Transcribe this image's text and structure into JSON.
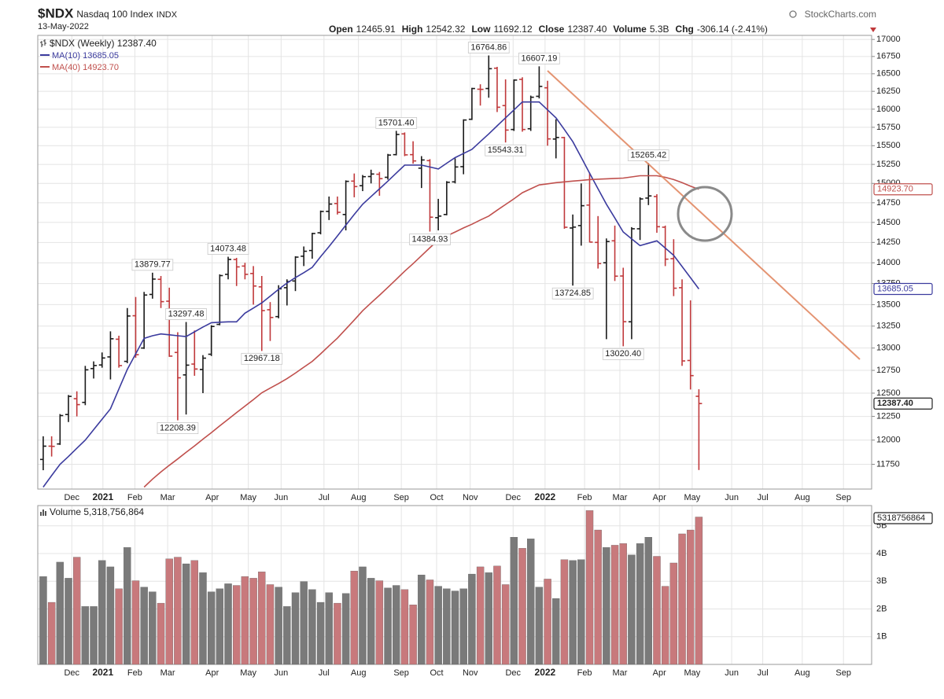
{
  "header": {
    "symbol": "$NDX",
    "name": "Nasdaq 100 Index",
    "exchange": "INDX",
    "date": "13-May-2022",
    "source": "StockCharts.com",
    "quote": [
      {
        "label": "Open",
        "value": "12465.91"
      },
      {
        "label": "High",
        "value": "12542.32"
      },
      {
        "label": "Low",
        "value": "11692.12"
      },
      {
        "label": "Close",
        "value": "12387.40"
      },
      {
        "label": "Volume",
        "value": "5.3B"
      },
      {
        "label": "Chg",
        "value": "-306.14 (-2.41%)"
      }
    ]
  },
  "chart_data": [
    {
      "type": "ohlc",
      "name": "$NDX (Weekly) 12387.40",
      "last_label": "12387.40",
      "up_color": "#1a1a1a",
      "down_color": "#c0393b",
      "log_scale": true,
      "grid": true,
      "ylim": [
        11500,
        17060
      ],
      "yticks": [
        11750,
        12000,
        12250,
        12500,
        12750,
        13000,
        13250,
        13500,
        13750,
        14000,
        14250,
        14500,
        14750,
        15000,
        15250,
        15500,
        15750,
        16000,
        16250,
        16500,
        16750,
        17000
      ],
      "xlim": [
        -0.65,
        98.55
      ],
      "xticks": [
        {
          "value": 3.4,
          "label": "Dec"
        },
        {
          "value": 7.1,
          "label": "2021"
        },
        {
          "value": 10.9,
          "label": "Feb"
        },
        {
          "value": 14.8,
          "label": "Mar"
        },
        {
          "value": 20.1,
          "label": "Apr"
        },
        {
          "value": 24.4,
          "label": "May"
        },
        {
          "value": 28.3,
          "label": "Jun"
        },
        {
          "value": 33.4,
          "label": "Jul"
        },
        {
          "value": 37.5,
          "label": "Aug"
        },
        {
          "value": 42.6,
          "label": "Sep"
        },
        {
          "value": 46.8,
          "label": "Oct"
        },
        {
          "value": 50.8,
          "label": "Nov"
        },
        {
          "value": 55.9,
          "label": "Dec"
        },
        {
          "value": 59.7,
          "label": "2022"
        },
        {
          "value": 64.4,
          "label": "Feb"
        },
        {
          "value": 68.6,
          "label": "Mar"
        },
        {
          "value": 73.3,
          "label": "Apr"
        },
        {
          "value": 77.2,
          "label": "May"
        },
        {
          "value": 81.9,
          "label": "Jun"
        },
        {
          "value": 85.6,
          "label": "Jul"
        },
        {
          "value": 90.3,
          "label": "Aug"
        },
        {
          "value": 95.2,
          "label": "Sep"
        }
      ],
      "open": [
        11800,
        11937,
        11960,
        12270,
        12440,
        12400,
        12770,
        12810,
        12900,
        13100,
        12850,
        13370,
        13000,
        13620,
        13800,
        13540,
        12950,
        12700,
        12820,
        12760,
        12930,
        13270,
        13860,
        14040,
        13960,
        13870,
        13710,
        13440,
        13360,
        13700,
        13780,
        14080,
        14150,
        14370,
        14640,
        14740,
        14600,
        15030,
        14970,
        15090,
        15120,
        15080,
        15380,
        15660,
        15380,
        15200,
        15300,
        14560,
        14600,
        15020,
        15220,
        15860,
        16280,
        16290,
        16580,
        16050,
        15720,
        16420,
        15730,
        16180,
        16300,
        15590,
        15610,
        14430,
        14460,
        14720,
        14250,
        14000,
        14270,
        13840,
        13300,
        14420,
        14810,
        14830,
        14440,
        14050,
        13700,
        12860,
        12465.91
      ],
      "high": [
        12040,
        12040,
        12275,
        12480,
        12520,
        12800,
        12850,
        12950,
        13190,
        13140,
        13460,
        13590,
        13650,
        13879.77,
        13840,
        13700,
        13180,
        13297.48,
        13200,
        12920,
        13260,
        13860,
        14073.48,
        14060,
        14000,
        13960,
        13840,
        13530,
        13730,
        13800,
        14080,
        14200,
        14370,
        14650,
        14830,
        14830,
        15040,
        15130,
        15110,
        15180,
        15150,
        15390,
        15701.4,
        15680,
        15560,
        15360,
        15320,
        14800,
        15030,
        15330,
        15860,
        16300,
        16350,
        16764.86,
        16600,
        16420,
        16420,
        16450,
        16190,
        16607.19,
        16400,
        15860,
        15620,
        14600,
        15000,
        15140,
        14580,
        14300,
        14460,
        13940,
        14440,
        14820,
        15265.42,
        14860,
        14460,
        14290,
        13800,
        13550,
        12542.32
      ],
      "low": [
        11690,
        11830,
        11950,
        12190,
        12250,
        12370,
        12660,
        12780,
        12650,
        12780,
        12830,
        12890,
        12990,
        13570,
        13460,
        12900,
        12208.39,
        12270,
        12690,
        12500,
        12910,
        13260,
        13800,
        13720,
        13800,
        13500,
        12967.18,
        13080,
        13340,
        13490,
        13660,
        13960,
        14050,
        14350,
        14530,
        14600,
        14400,
        14820,
        14900,
        15000,
        14840,
        15050,
        15370,
        15360,
        15260,
        14940,
        14384.93,
        14400,
        14590,
        15000,
        15120,
        15850,
        16050,
        16160,
        15960,
        15543.31,
        15700,
        15690,
        15700,
        16150,
        15500,
        15330,
        14420,
        13724.85,
        14210,
        14250,
        13930,
        13100,
        13780,
        13020.4,
        13100,
        14280,
        14720,
        14370,
        13960,
        13600,
        12800,
        12540,
        11692.12
      ],
      "close": [
        11937,
        11935,
        12259,
        12465,
        12376,
        12756,
        12804,
        12888,
        13105,
        12803,
        13367,
        12925,
        13613,
        13803,
        13535,
        12909,
        12668,
        12808,
        12765,
        12886,
        13246,
        13845,
        14041,
        13950,
        13860,
        13720,
        13430,
        13350,
        13687,
        13773,
        14069,
        14141,
        14361,
        14639,
        14733,
        14628,
        15027,
        14959,
        15088,
        15123,
        15062,
        15374,
        15652,
        15377,
        15296,
        15309,
        14566,
        14580,
        15015,
        15216,
        15850,
        16290,
        16278,
        16573,
        16027,
        15712,
        16410,
        15720,
        16167,
        16320,
        15592,
        15611,
        14439,
        14441,
        14712,
        14254,
        13990,
        14261,
        13838,
        13301,
        14420,
        14799,
        14838,
        14446,
        14044,
        13694,
        12855,
        12692,
        12387.4
      ],
      "high_labels": [
        null,
        null,
        null,
        null,
        null,
        null,
        null,
        null,
        null,
        null,
        null,
        null,
        null,
        "13879.77",
        null,
        null,
        null,
        "13297.48",
        null,
        null,
        null,
        null,
        "14073.48",
        null,
        null,
        null,
        null,
        null,
        null,
        null,
        null,
        null,
        null,
        null,
        null,
        null,
        null,
        null,
        null,
        null,
        null,
        null,
        "15701.40",
        null,
        null,
        null,
        null,
        null,
        null,
        null,
        null,
        null,
        null,
        "16764.86",
        null,
        null,
        null,
        null,
        null,
        "16607.19",
        null,
        null,
        null,
        null,
        null,
        null,
        null,
        null,
        null,
        null,
        null,
        null,
        "15265.42",
        null,
        null,
        null,
        null,
        null,
        null
      ],
      "low_labels": [
        null,
        null,
        null,
        null,
        null,
        null,
        null,
        null,
        null,
        null,
        null,
        null,
        null,
        null,
        null,
        null,
        "12208.39",
        null,
        null,
        null,
        null,
        null,
        null,
        null,
        null,
        null,
        "12967.18",
        null,
        null,
        null,
        null,
        null,
        null,
        null,
        null,
        null,
        null,
        null,
        null,
        null,
        null,
        null,
        null,
        null,
        null,
        null,
        "14384.93",
        null,
        null,
        null,
        null,
        null,
        null,
        null,
        null,
        "15543.31",
        null,
        null,
        null,
        null,
        null,
        null,
        null,
        "13724.85",
        null,
        null,
        null,
        null,
        null,
        "13020.40",
        null,
        null,
        null,
        null,
        null,
        null,
        null,
        null,
        null
      ],
      "series": [
        {
          "name": "MA(10) 13685.05",
          "color": "#3b3b9e",
          "last_label": "13685.05",
          "values": [
            11520,
            11635,
            11750,
            11830,
            11915,
            12000,
            12110,
            12220,
            12330,
            12545,
            12760,
            12935,
            13110,
            13140,
            13160,
            13150,
            13140,
            13130,
            13185,
            13240,
            13290,
            13295,
            13300,
            13300,
            13400,
            13460,
            13520,
            13600,
            13680,
            13755,
            13820,
            13880,
            13945,
            14075,
            14200,
            14330,
            14465,
            14600,
            14730,
            14830,
            14930,
            15030,
            15135,
            15240,
            15240,
            15240,
            15215,
            15190,
            15265,
            15340,
            15395,
            15450,
            15555,
            15660,
            15770,
            15880,
            15990,
            16100,
            16100,
            16100,
            15990,
            15880,
            15720,
            15555,
            15345,
            15135,
            14930,
            14730,
            14555,
            14380,
            14295,
            14210,
            14240,
            14270,
            14180,
            14090,
            13955,
            13820,
            13685.05
          ]
        },
        {
          "name": "MA(40) 14923.70",
          "color": "#c0504d",
          "last_label": "14923.70",
          "values": [
            null,
            null,
            null,
            null,
            null,
            null,
            null,
            null,
            null,
            null,
            null,
            null,
            11520,
            11600,
            11672,
            11740,
            11805,
            11873,
            11940,
            12010,
            12078,
            12150,
            12220,
            12290,
            12360,
            12430,
            12504,
            12555,
            12605,
            12658,
            12720,
            12785,
            12850,
            12935,
            13025,
            13112,
            13215,
            13320,
            13428,
            13520,
            13610,
            13705,
            13800,
            13898,
            13990,
            14086,
            14185,
            14280,
            14330,
            14379,
            14430,
            14477,
            14530,
            14580,
            14655,
            14727,
            14800,
            14879,
            14930,
            14980,
            14995,
            15010,
            15020,
            15030,
            15040,
            15050,
            15055,
            15060,
            15065,
            15070,
            15085,
            15100,
            15100,
            15100,
            15080,
            15050,
            15010,
            14965,
            14923.7
          ]
        }
      ]
    },
    {
      "type": "volume",
      "title": "Volume 5,318,756,864",
      "up_color": "#7a7a7a",
      "down_color": "#c8797c",
      "grid": true,
      "ylim": [
        0,
        5730000000
      ],
      "yticks": [
        {
          "value": 1000000000,
          "label": "1B"
        },
        {
          "value": 2000000000,
          "label": "2B"
        },
        {
          "value": 3000000000,
          "label": "3B"
        },
        {
          "value": 4000000000,
          "label": "4B"
        },
        {
          "value": 5000000000,
          "label": "5B"
        }
      ],
      "values": [
        3170000000.0,
        2240000000.0,
        3690000000.0,
        3110000000.0,
        3870000000.0,
        2090000000.0,
        2090000000.0,
        3750000000.0,
        3520000000.0,
        2730000000.0,
        4220000000.0,
        3020000000.0,
        2790000000.0,
        2620000000.0,
        2210000000.0,
        3810000000.0,
        3870000000.0,
        3630000000.0,
        3750000000.0,
        3310000000.0,
        2620000000.0,
        2730000000.0,
        2910000000.0,
        2850000000.0,
        3170000000.0,
        3110000000.0,
        3340000000.0,
        2880000000.0,
        2790000000.0,
        2090000000.0,
        2590000000.0,
        2990000000.0,
        2700000000.0,
        2240000000.0,
        2590000000.0,
        2210000000.0,
        2560000000.0,
        3370000000.0,
        3520000000.0,
        3110000000.0,
        3020000000.0,
        2760000000.0,
        2850000000.0,
        2700000000.0,
        2150000000.0,
        3230000000.0,
        3050000000.0,
        2820000000.0,
        2730000000.0,
        2650000000.0,
        2730000000.0,
        3260000000.0,
        3520000000.0,
        3310000000.0,
        3550000000.0,
        2880000000.0,
        4590000000.0,
        4190000000.0,
        4530000000.0,
        2790000000.0,
        3080000000.0,
        2380000000.0,
        3780000000.0,
        3750000000.0,
        3780000000.0,
        5550000000.0,
        4850000000.0,
        4220000000.0,
        4300000000.0,
        4360000000.0,
        3950000000.0,
        4360000000.0,
        4590000000.0,
        3900000000.0,
        2820000000.0,
        3660000000.0,
        4710000000.0,
        4850000000.0,
        5318756864
      ]
    }
  ]
}
